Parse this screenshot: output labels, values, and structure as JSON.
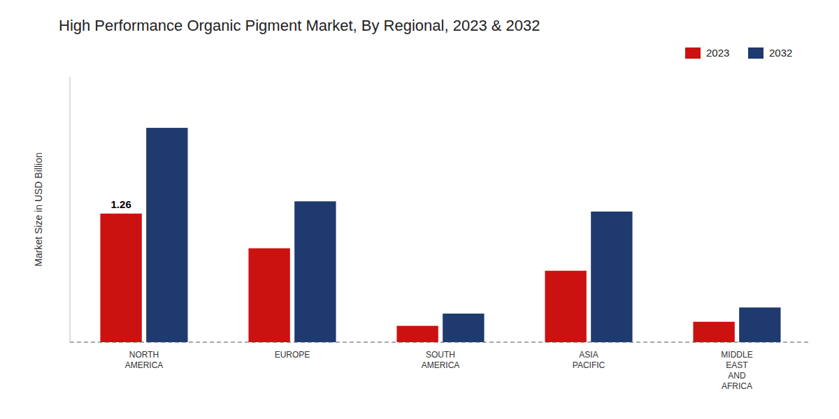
{
  "chart_data": {
    "type": "bar",
    "title": "High Performance Organic Pigment Market, By Regional, 2023 & 2032",
    "ylabel": "Market Size in USD Billion",
    "categories": [
      "NORTH\nAMERICA",
      "EUROPE",
      "SOUTH\nAMERICA",
      "ASIA\nPACIFIC",
      "MIDDLE\nEAST\nAND\nAFRICA"
    ],
    "series": [
      {
        "name": "2023",
        "color": "#cc1111",
        "values": [
          1.26,
          0.92,
          0.16,
          0.7,
          0.2
        ]
      },
      {
        "name": "2032",
        "color": "#1e3a6e",
        "values": [
          2.1,
          1.38,
          0.28,
          1.28,
          0.34
        ]
      }
    ],
    "annotation": "1.26",
    "ylim": [
      0,
      2.6
    ],
    "grid": false,
    "legend": "upper right",
    "tick_labels": "x"
  }
}
